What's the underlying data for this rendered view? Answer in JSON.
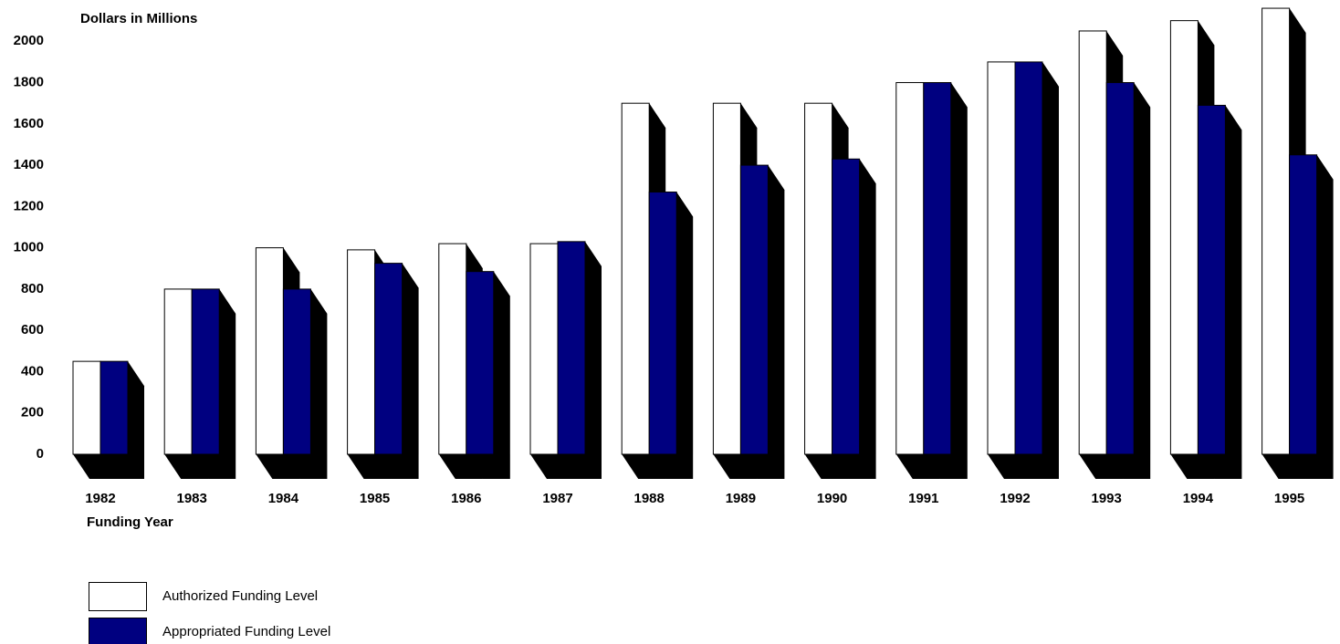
{
  "chart_data": {
    "type": "bar",
    "y_axis_label": "Dollars in Millions",
    "x_axis_label": "Funding Year",
    "categories": [
      "1982",
      "1983",
      "1984",
      "1985",
      "1986",
      "1987",
      "1988",
      "1989",
      "1990",
      "1991",
      "1992",
      "1993",
      "1994",
      "1995"
    ],
    "series": [
      {
        "name": "Authorized Funding Level",
        "color": "#ffffff",
        "values": [
          450,
          800,
          1000,
          990,
          1020,
          1020,
          1700,
          1700,
          1700,
          1800,
          1900,
          2050,
          2100,
          2160
        ]
      },
      {
        "name": "Appropriated Funding Level",
        "color": "#000080",
        "values": [
          450,
          800,
          800,
          925,
          885,
          1030,
          1270,
          1400,
          1430,
          1800,
          1900,
          1800,
          1690,
          1450
        ]
      }
    ],
    "ylim": [
      0,
      2200
    ],
    "yticks": [
      0,
      200,
      400,
      600,
      800,
      1000,
      1200,
      1400,
      1600,
      1800,
      2000
    ]
  }
}
